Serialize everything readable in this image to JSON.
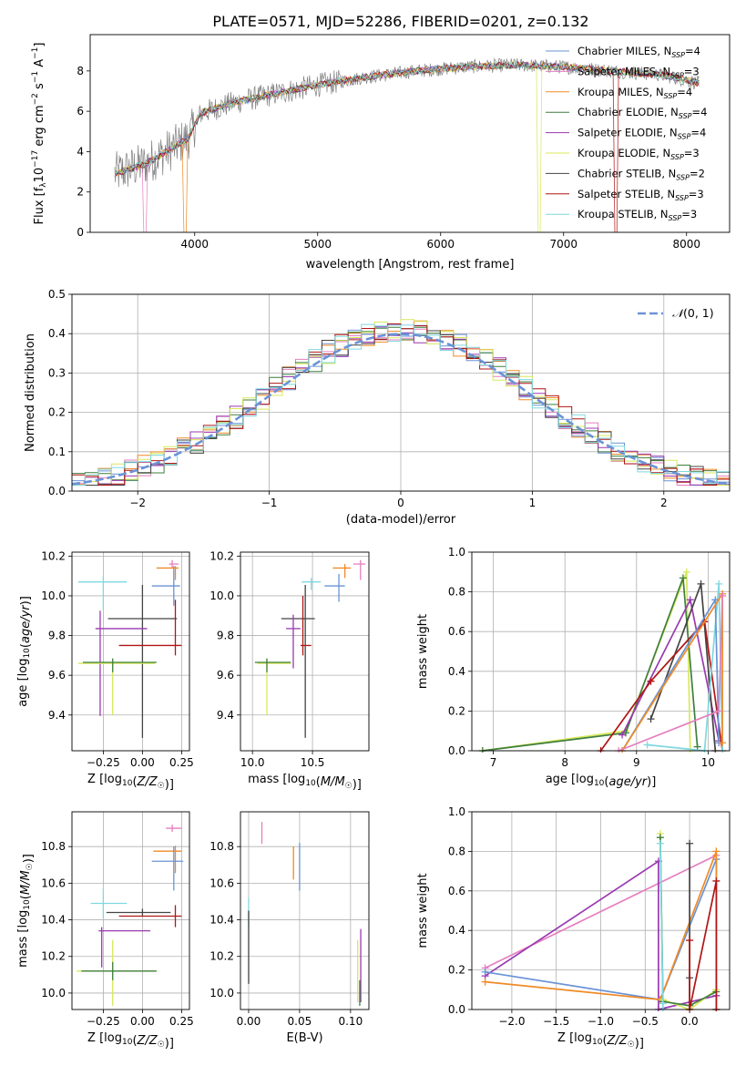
{
  "figure_title": "PLATE=0571, MJD=52286, FIBERID=0201, z=0.132",
  "colors": {
    "Chabrier MILES": "#6a93d6",
    "Salpeter MILES": "#e57fbf",
    "Kroupa MILES": "#f08a26",
    "Chabrier ELODIE": "#3f7f3f",
    "Salpeter ELODIE": "#9a39b0",
    "Kroupa ELODIE": "#d8e85a",
    "Chabrier STELIB": "#444444",
    "Salpeter STELIB": "#b01515",
    "Kroupa STELIB": "#7fd8e0",
    "data": "#808080",
    "normal": "#6a93d6"
  },
  "chart_data": [
    {
      "id": "spectrum",
      "type": "line",
      "xlabel": "wavelength [Angstrom, rest frame]",
      "ylabel": "Flux [f_λ 10^-17 erg cm^-2 s^-1 A^-1]",
      "xlim": [
        3150,
        8350
      ],
      "ylim": [
        0,
        9.8
      ],
      "xticks": [
        4000,
        5000,
        6000,
        7000,
        8000
      ],
      "yticks": [
        0,
        2,
        4,
        6,
        8
      ],
      "grid": false,
      "legend_position": "bottom-right",
      "legend": [
        {
          "model": "Chabrier MILES",
          "label": "Chabrier MILES, N",
          "n": "4"
        },
        {
          "model": "Salpeter MILES",
          "label": "Salpeter MILES, N",
          "n": "3"
        },
        {
          "model": "Kroupa MILES",
          "label": "Kroupa MILES, N",
          "n": "4"
        },
        {
          "model": "Chabrier ELODIE",
          "label": "Chabrier ELODIE, N",
          "n": "4"
        },
        {
          "model": "Salpeter ELODIE",
          "label": "Salpeter ELODIE, N",
          "n": "4"
        },
        {
          "model": "Kroupa ELODIE",
          "label": "Kroupa ELODIE, N",
          "n": "3"
        },
        {
          "model": "Chabrier STELIB",
          "label": "Chabrier STELIB, N",
          "n": "2"
        },
        {
          "model": "Salpeter STELIB",
          "label": "Salpeter STELIB, N",
          "n": "3"
        },
        {
          "model": "Kroupa STELIB",
          "label": "Kroupa STELIB, N",
          "n": "3"
        }
      ],
      "legend_subscript": "SSP",
      "continuum": {
        "x": [
          3350,
          3600,
          3800,
          3950,
          4050,
          4300,
          4600,
          5000,
          5400,
          5800,
          6200,
          6600,
          7000,
          7400,
          7800,
          8100
        ],
        "y": [
          2.9,
          3.4,
          4.1,
          4.7,
          5.9,
          6.4,
          6.8,
          7.3,
          7.7,
          8.0,
          8.2,
          8.3,
          8.2,
          8.0,
          7.8,
          7.4
        ]
      },
      "data_range": [
        3350,
        8100
      ],
      "model_drops": [
        {
          "model": "Salpeter MILES",
          "x": 3590
        },
        {
          "model": "Kroupa MILES",
          "x": 3920
        },
        {
          "model": "Kroupa ELODIE",
          "x": 6800
        },
        {
          "model": "Salpeter STELIB",
          "x": 7430
        }
      ]
    },
    {
      "id": "residuals",
      "type": "histogram",
      "xlabel": "(data-model)/error",
      "ylabel": "Normed distribution",
      "xlim": [
        -2.5,
        2.5
      ],
      "ylim": [
        0,
        0.5
      ],
      "xticks": [
        -2,
        -1,
        0,
        1,
        2
      ],
      "yticks": [
        0.0,
        0.1,
        0.2,
        0.3,
        0.4,
        0.5
      ],
      "grid": true,
      "bins": 50,
      "legend_position": "top-right",
      "normal_label": "N(0, 1)"
    },
    {
      "id": "age_vs_Z",
      "type": "scatter",
      "xlabel": "Z [log10(Z/Z☉)]",
      "ylabel": "age [log10(age/yr)]",
      "xlim": [
        -0.45,
        0.3
      ],
      "ylim": [
        9.22,
        10.22
      ],
      "xticks": [
        -0.25,
        0.0,
        0.25
      ],
      "yticks": [
        9.4,
        9.6,
        9.8,
        10.0,
        10.2
      ],
      "grid": true,
      "points": [
        {
          "model": "Kroupa STELIB",
          "x": -0.25,
          "xerr": [
            0.16,
            0.15
          ],
          "y": 10.07,
          "yerr": [
            0.14,
            0.03
          ]
        },
        {
          "model": "Chabrier MILES",
          "x": 0.2,
          "xerr": [
            0.14,
            0.04
          ],
          "y": 10.05,
          "yerr": [
            0.1,
            0.1
          ]
        },
        {
          "model": "Kroupa MILES",
          "x": 0.21,
          "xerr": [
            0.12,
            0.02
          ],
          "y": 10.14,
          "yerr": [
            0.06,
            0.01
          ]
        },
        {
          "model": "Salpeter MILES",
          "x": 0.19,
          "xerr": [
            0.02,
            0.04
          ],
          "y": 10.16,
          "yerr": [
            0.02,
            0.02
          ]
        },
        {
          "model": "Chabrier STELIB",
          "x": 0.0,
          "xerr": [
            0.22,
            0.22
          ],
          "y": 9.885,
          "yerr": [
            0.6,
            0.17
          ]
        },
        {
          "model": "Salpeter ELODIE",
          "x": -0.27,
          "xerr": [
            0.03,
            0.3
          ],
          "y": 9.835,
          "yerr": [
            0.44,
            0.09
          ]
        },
        {
          "model": "Salpeter STELIB",
          "x": 0.21,
          "xerr": [
            0.36,
            0.04
          ],
          "y": 9.75,
          "yerr": [
            0.05,
            0.23
          ]
        },
        {
          "model": "Kroupa ELODIE",
          "x": -0.19,
          "xerr": [
            0.22,
            0.27
          ],
          "y": 9.66,
          "yerr": [
            0.26,
            0.02
          ]
        },
        {
          "model": "Chabrier ELODIE",
          "x": -0.19,
          "xerr": [
            0.19,
            0.28
          ],
          "y": 9.665,
          "yerr": [
            0.05,
            0.02
          ]
        }
      ]
    },
    {
      "id": "age_vs_mass",
      "type": "scatter",
      "xlabel": "mass [log10(M/M☉)]",
      "ylabel": "",
      "xlim": [
        9.9,
        10.97
      ],
      "ylim": [
        9.22,
        10.22
      ],
      "xticks": [
        10.0,
        10.5
      ],
      "yticks": [
        9.4,
        9.6,
        9.8,
        10.0,
        10.2
      ],
      "grid": true,
      "points": [
        {
          "model": "Kroupa STELIB",
          "x": 10.49,
          "xerr": [
            0.08,
            0.08
          ],
          "y": 10.07,
          "yerr": [
            0.04,
            0.02
          ]
        },
        {
          "model": "Chabrier MILES",
          "x": 10.72,
          "xerr": [
            0.12,
            0.05
          ],
          "y": 10.05,
          "yerr": [
            0.08,
            0.06
          ]
        },
        {
          "model": "Kroupa MILES",
          "x": 10.77,
          "xerr": [
            0.1,
            0.05
          ],
          "y": 10.14,
          "yerr": [
            0.05,
            0.02
          ]
        },
        {
          "model": "Salpeter MILES",
          "x": 10.9,
          "xerr": [
            0.06,
            0.04
          ],
          "y": 10.16,
          "yerr": [
            0.08,
            0.02
          ]
        },
        {
          "model": "Chabrier STELIB",
          "x": 10.44,
          "xerr": [
            0.2,
            0.08
          ],
          "y": 9.885,
          "yerr": [
            0.6,
            0.17
          ]
        },
        {
          "model": "Salpeter ELODIE",
          "x": 10.34,
          "xerr": [
            0.06,
            0.06
          ],
          "y": 9.835,
          "yerr": [
            0.2,
            0.07
          ]
        },
        {
          "model": "Salpeter STELIB",
          "x": 10.42,
          "xerr": [
            0.02,
            0.07
          ],
          "y": 9.75,
          "yerr": [
            0.05,
            0.25
          ]
        },
        {
          "model": "Kroupa ELODIE",
          "x": 10.12,
          "xerr": [
            0.08,
            0.2
          ],
          "y": 9.66,
          "yerr": [
            0.26,
            0.02
          ]
        },
        {
          "model": "Chabrier ELODIE",
          "x": 10.12,
          "xerr": [
            0.1,
            0.2
          ],
          "y": 9.665,
          "yerr": [
            0.05,
            0.02
          ]
        }
      ]
    },
    {
      "id": "mass_weight_vs_age",
      "type": "line",
      "xlabel": "age [log10(age/yr)]",
      "ylabel": "mass weight",
      "xlim": [
        6.7,
        10.3
      ],
      "ylim": [
        0,
        1
      ],
      "xticks": [
        7,
        8,
        9,
        10
      ],
      "yticks": [
        0.0,
        0.2,
        0.4,
        0.6,
        0.8,
        1.0
      ],
      "grid": true,
      "series": [
        {
          "model": "Kroupa ELODIE",
          "x": [
            6.85,
            8.85,
            9.7,
            9.75
          ],
          "y": [
            0.0,
            0.1,
            0.9,
            0.0
          ]
        },
        {
          "model": "Chabrier ELODIE",
          "x": [
            6.85,
            8.85,
            9.65,
            9.85
          ],
          "y": [
            0.0,
            0.09,
            0.87,
            0.02
          ]
        },
        {
          "model": "Salpeter ELODIE",
          "x": [
            8.8,
            9.75,
            10.15
          ],
          "y": [
            0.08,
            0.76,
            0.05
          ]
        },
        {
          "model": "Chabrier STELIB",
          "x": [
            9.2,
            9.9,
            10.1
          ],
          "y": [
            0.16,
            0.84,
            0.0
          ]
        },
        {
          "model": "Salpeter STELIB",
          "x": [
            8.5,
            9.2,
            9.95,
            10.2
          ],
          "y": [
            0.0,
            0.35,
            0.65,
            0.0
          ]
        },
        {
          "model": "Kroupa STELIB",
          "x": [
            9.15,
            9.95,
            10.15,
            10.2
          ],
          "y": [
            0.03,
            0.0,
            0.84,
            0.0
          ]
        },
        {
          "model": "Chabrier MILES",
          "x": [
            8.8,
            10.1,
            10.15
          ],
          "y": [
            0.0,
            0.76,
            0.04
          ]
        },
        {
          "model": "Kroupa MILES",
          "x": [
            8.8,
            10.2,
            10.2
          ],
          "y": [
            0.0,
            0.79,
            0.04
          ]
        },
        {
          "model": "Salpeter MILES",
          "x": [
            8.75,
            10.15,
            10.2
          ],
          "y": [
            0.0,
            0.2,
            0.78
          ]
        }
      ]
    },
    {
      "id": "mass_vs_Z",
      "type": "scatter",
      "xlabel": "Z [log10(Z/Z☉)]",
      "ylabel": "mass [log10(M/M☉)]",
      "xlim": [
        -0.45,
        0.3
      ],
      "ylim": [
        9.91,
        10.99
      ],
      "xticks": [
        -0.25,
        0.0,
        0.25
      ],
      "yticks": [
        10.0,
        10.2,
        10.4,
        10.6,
        10.8
      ],
      "grid": true,
      "points": [
        {
          "model": "Salpeter MILES",
          "x": 0.19,
          "xerr": [
            0.04,
            0.06
          ],
          "y": 10.9,
          "yerr": [
            0.02,
            0.02
          ]
        },
        {
          "model": "Kroupa MILES",
          "x": 0.21,
          "xerr": [
            0.14,
            0.04
          ],
          "y": 10.775,
          "yerr": [
            0.12,
            0.03
          ]
        },
        {
          "model": "Chabrier MILES",
          "x": 0.2,
          "xerr": [
            0.14,
            0.06
          ],
          "y": 10.72,
          "yerr": [
            0.16,
            0.08
          ]
        },
        {
          "model": "Kroupa STELIB",
          "x": -0.25,
          "xerr": [
            0.08,
            0.15
          ],
          "y": 10.49,
          "yerr": [
            0.08,
            0.08
          ]
        },
        {
          "model": "Chabrier STELIB",
          "x": 0.0,
          "xerr": [
            0.23,
            0.18
          ],
          "y": 10.44,
          "yerr": [
            0.02,
            0.02
          ]
        },
        {
          "model": "Salpeter STELIB",
          "x": 0.21,
          "xerr": [
            0.36,
            0.04
          ],
          "y": 10.42,
          "yerr": [
            0.06,
            0.06
          ]
        },
        {
          "model": "Salpeter ELODIE",
          "x": -0.26,
          "xerr": [
            0.02,
            0.31
          ],
          "y": 10.34,
          "yerr": [
            0.2,
            0.02
          ]
        },
        {
          "model": "Kroupa ELODIE",
          "x": -0.19,
          "xerr": [
            0.23,
            0.28
          ],
          "y": 10.12,
          "yerr": [
            0.19,
            0.17
          ]
        },
        {
          "model": "Chabrier ELODIE",
          "x": -0.19,
          "xerr": [
            0.2,
            0.28
          ],
          "y": 10.12,
          "yerr": [
            0.05,
            0.05
          ]
        }
      ]
    },
    {
      "id": "mass_vs_ebv",
      "type": "scatter",
      "xlabel": "E(B-V)",
      "ylabel": "",
      "xlim": [
        -0.008,
        0.118
      ],
      "ylim": [
        9.91,
        10.99
      ],
      "xticks": [
        0.0,
        0.05,
        0.1
      ],
      "yticks": [
        10.0,
        10.2,
        10.4,
        10.6,
        10.8
      ],
      "grid": true,
      "points": [
        {
          "model": "Salpeter MILES",
          "x": 0.013,
          "xerr": [
            0,
            0
          ],
          "y": 10.875,
          "yerr": [
            0.06,
            0.06
          ]
        },
        {
          "model": "Kroupa MILES",
          "x": 0.044,
          "xerr": [
            0,
            0
          ],
          "y": 10.71,
          "yerr": [
            0.09,
            0.09
          ]
        },
        {
          "model": "Chabrier MILES",
          "x": 0.05,
          "xerr": [
            0,
            0
          ],
          "y": 10.69,
          "yerr": [
            0.13,
            0.13
          ]
        },
        {
          "model": "Kroupa STELIB",
          "x": 0.0,
          "xerr": [
            0,
            0
          ],
          "y": 10.44,
          "yerr": [
            0.08,
            0.08
          ]
        },
        {
          "model": "Chabrier STELIB",
          "x": 0.0,
          "xerr": [
            0,
            0
          ],
          "y": 10.25,
          "yerr": [
            0.2,
            0.2
          ]
        },
        {
          "model": "Salpeter ELODIE",
          "x": 0.11,
          "xerr": [
            0,
            0
          ],
          "y": 10.15,
          "yerr": [
            0.2,
            0.2
          ]
        },
        {
          "model": "Kroupa ELODIE",
          "x": 0.107,
          "xerr": [
            0,
            0
          ],
          "y": 10.12,
          "yerr": [
            0.17,
            0.17
          ]
        },
        {
          "model": "Chabrier ELODIE",
          "x": 0.109,
          "xerr": [
            0,
            0
          ],
          "y": 10.0,
          "yerr": [
            0.07,
            0.07
          ]
        }
      ]
    },
    {
      "id": "mass_weight_vs_Z",
      "type": "line",
      "xlabel": "Z [log10(Z/Z☉)]",
      "ylabel": "mass weight",
      "xlim": [
        -2.45,
        0.45
      ],
      "ylim": [
        0,
        1
      ],
      "xticks": [
        -2.0,
        -1.5,
        -1.0,
        -0.5,
        0.0
      ],
      "yticks": [
        0.0,
        0.2,
        0.4,
        0.6,
        0.8,
        1.0
      ],
      "grid": true,
      "series": [
        {
          "model": "Salpeter MILES",
          "x": [
            -2.3,
            0.3
          ],
          "y": [
            0.21,
            0.78
          ]
        },
        {
          "model": "Salpeter ELODIE",
          "x": [
            -2.3,
            -0.35,
            -0.35,
            0.3
          ],
          "y": [
            0.17,
            0.75,
            0.0,
            0.07
          ]
        },
        {
          "model": "Chabrier MILES",
          "x": [
            -2.3,
            -0.33,
            0.3,
            0.3
          ],
          "y": [
            0.19,
            0.05,
            0.76,
            0.0
          ]
        },
        {
          "model": "Kroupa MILES",
          "x": [
            -2.3,
            -0.33,
            0.3,
            0.3
          ],
          "y": [
            0.14,
            0.05,
            0.8,
            0.0
          ]
        },
        {
          "model": "Kroupa ELODIE",
          "x": [
            -0.33,
            -0.3,
            0.0,
            0.3
          ],
          "y": [
            0.89,
            0.05,
            0.0,
            0.1
          ]
        },
        {
          "model": "Chabrier ELODIE",
          "x": [
            -0.33,
            -0.3,
            0.0,
            0.3
          ],
          "y": [
            0.87,
            0.04,
            0.02,
            0.09
          ]
        },
        {
          "model": "Kroupa STELIB",
          "x": [
            -0.33,
            -0.3,
            -0.3
          ],
          "y": [
            0.84,
            0.03,
            0.0
          ]
        },
        {
          "model": "Chabrier STELIB",
          "x": [
            0.0,
            0.0,
            0.0
          ],
          "y": [
            0.84,
            0.16,
            0.0
          ]
        },
        {
          "model": "Salpeter STELIB",
          "x": [
            0.0,
            0.0,
            0.3,
            0.3
          ],
          "y": [
            0.35,
            0.0,
            0.65,
            0.0
          ]
        }
      ]
    }
  ]
}
